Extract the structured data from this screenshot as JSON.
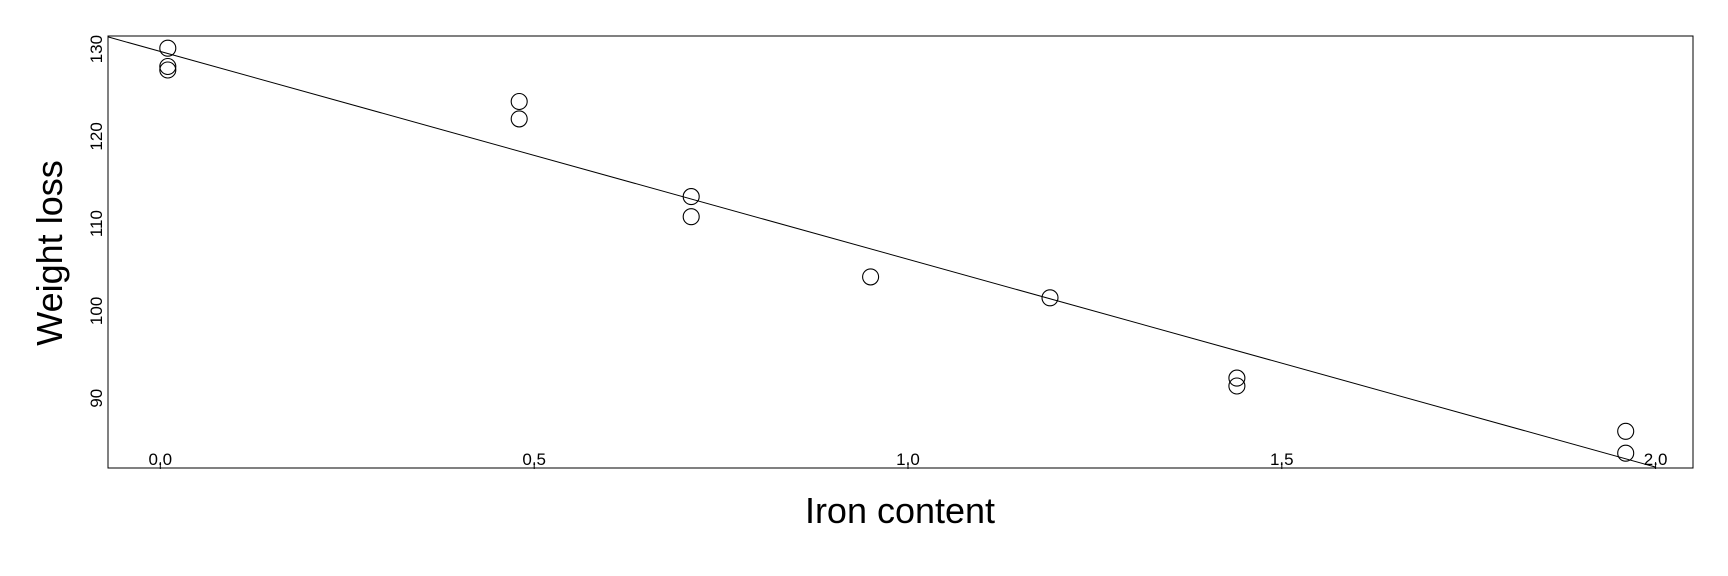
{
  "chart_data": {
    "type": "scatter",
    "title": "",
    "xlabel": "Iron content",
    "ylabel": "Weight loss",
    "xlim": [
      -0.07,
      2.05
    ],
    "ylim": [
      82,
      131.5
    ],
    "x_ticks": [
      0.0,
      0.5,
      1.0,
      1.5,
      2.0
    ],
    "x_tick_labels": [
      "0.0",
      "0.5",
      "1.0",
      "1.5",
      "2.0"
    ],
    "y_ticks": [
      90,
      100,
      110,
      120,
      130
    ],
    "y_tick_labels": [
      "90",
      "100",
      "110",
      "120",
      "130"
    ],
    "grid": false,
    "points": [
      {
        "x": 0.01,
        "y": 127.6
      },
      {
        "x": 0.01,
        "y": 130.1
      },
      {
        "x": 0.01,
        "y": 128.0
      },
      {
        "x": 0.48,
        "y": 124.0
      },
      {
        "x": 0.48,
        "y": 122.0
      },
      {
        "x": 0.71,
        "y": 110.8
      },
      {
        "x": 0.71,
        "y": 113.1
      },
      {
        "x": 0.95,
        "y": 103.9
      },
      {
        "x": 1.19,
        "y": 101.5
      },
      {
        "x": 1.44,
        "y": 92.3
      },
      {
        "x": 1.44,
        "y": 91.4
      },
      {
        "x": 1.96,
        "y": 83.7
      },
      {
        "x": 1.96,
        "y": 86.2
      }
    ],
    "fit_line": {
      "x0": -0.07,
      "y0": 131.4,
      "x1": 2.0,
      "y1": 82.1
    }
  }
}
